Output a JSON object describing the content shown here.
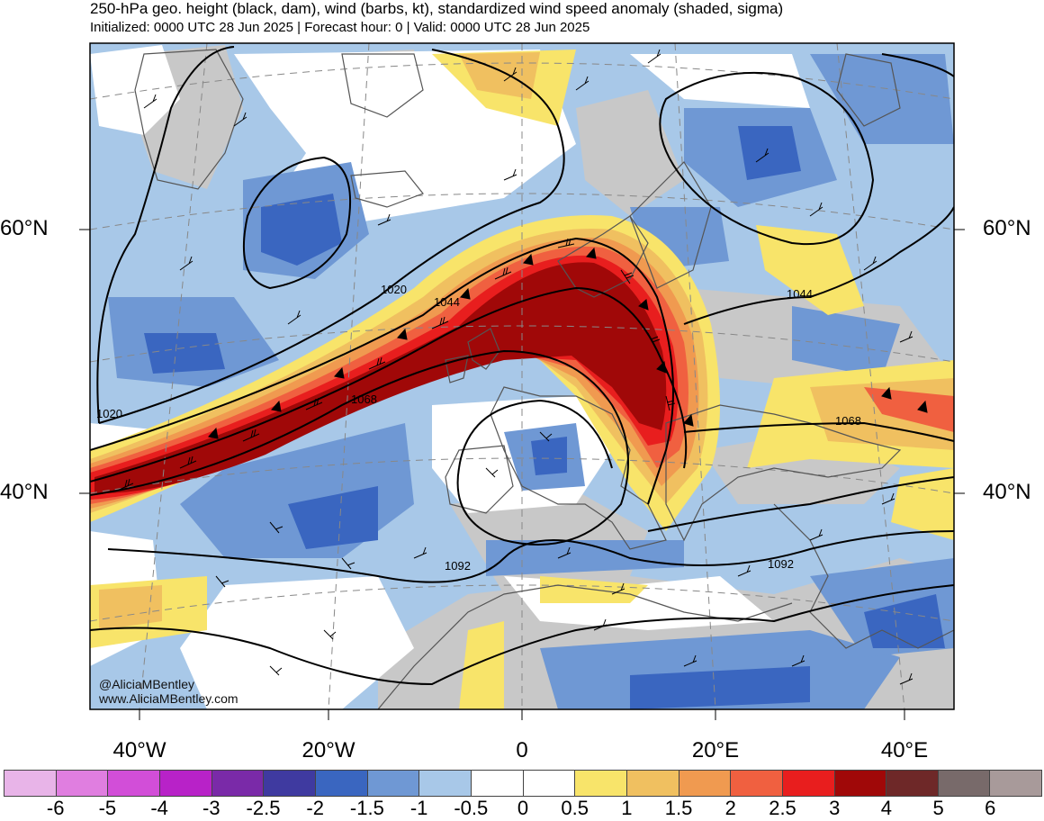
{
  "title": "250-hPa geo. height (black, dam), wind (barbs, kt), standardized wind speed anomaly (shaded, sigma)",
  "subtitle": "Initialized: 0000 UTC 28 Jun 2025 | Forecast hour: 0 | Valid: 0000 UTC 28 Jun 2025",
  "lat_labels": {
    "lat60": "60°N",
    "lat40": "40°N"
  },
  "lon_labels": [
    "40°W",
    "20°W",
    "0",
    "20°E",
    "40°E"
  ],
  "contour_labels": [
    "1020",
    "1044",
    "1068",
    "1092",
    "1044",
    "1068",
    "1092",
    "1020"
  ],
  "credits": {
    "handle": "@AliciaMBentley",
    "website": "www.AliciaMBentley.com"
  },
  "colorbar": {
    "colors": [
      "#e8b4e8",
      "#e07ee0",
      "#d24ed8",
      "#b822c8",
      "#7a2aa8",
      "#3f3aa0",
      "#3a66c0",
      "#6f98d4",
      "#a8c8e8",
      "#ffffff",
      "#ffffff",
      "#f8e46a",
      "#f0c060",
      "#f09a50",
      "#f06040",
      "#e81e1e",
      "#a00808",
      "#6e2828",
      "#786a6a",
      "#a89a9a"
    ],
    "labels": [
      "-6",
      "-5",
      "-4",
      "-3",
      "-2.5",
      "-2",
      "-1.5",
      "-1",
      "-0.5",
      "0",
      "0.5",
      "1",
      "1.5",
      "2",
      "2.5",
      "3",
      "4",
      "5",
      "6"
    ]
  }
}
